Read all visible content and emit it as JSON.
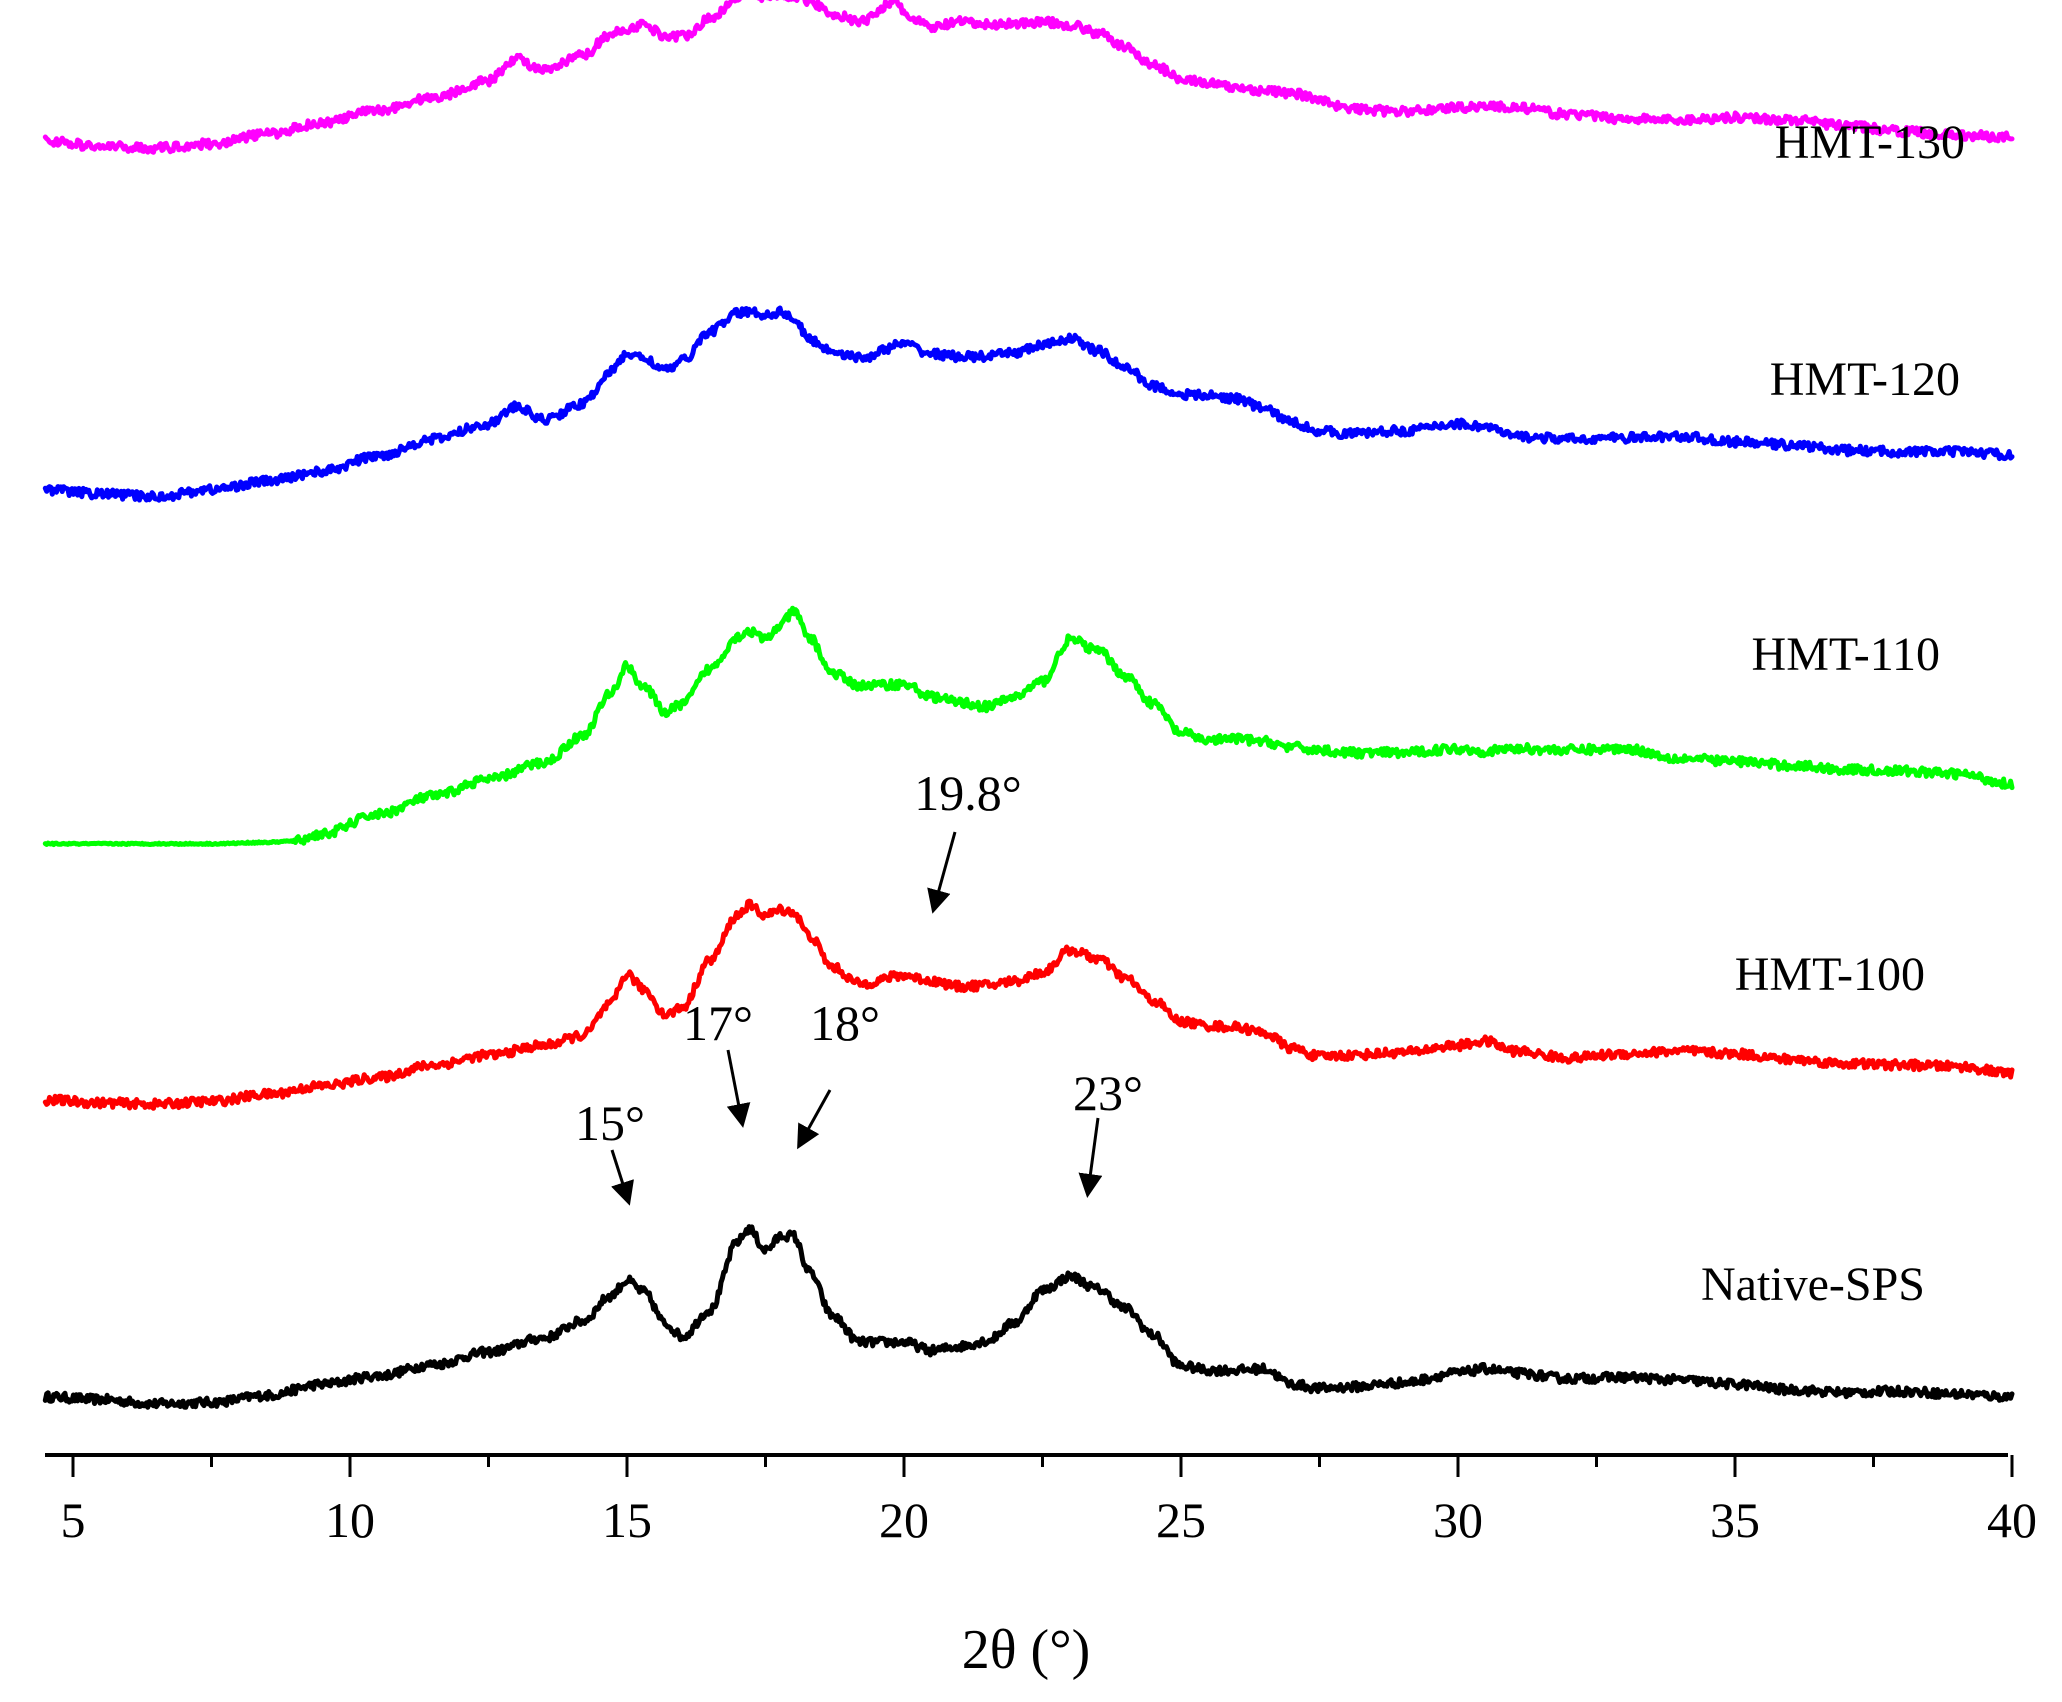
{
  "chart_data": {
    "type": "line",
    "xlabel": "2θ (°)",
    "ylabel": "",
    "xlim": [
      4.5,
      40
    ],
    "xticks": [
      5,
      10,
      15,
      20,
      25,
      30,
      35,
      40
    ],
    "xtick_labels": [
      "5",
      "10",
      "15",
      "20",
      "25",
      "30",
      "35",
      "40"
    ],
    "grid": false,
    "y_axis_shown": false,
    "series": [
      {
        "name": "Native-SPS",
        "color": "#000000",
        "x": [
          4.5,
          5.5,
          6.5,
          7.5,
          8.5,
          9.5,
          10.5,
          11.5,
          12.5,
          13.5,
          14.2,
          14.7,
          15.0,
          15.3,
          15.7,
          16.0,
          16.5,
          17.0,
          17.2,
          17.5,
          17.8,
          18.0,
          18.3,
          18.7,
          19.2,
          20.0,
          20.5,
          21.0,
          21.5,
          22.0,
          22.5,
          23.0,
          23.5,
          24.0,
          24.5,
          25.0,
          25.5,
          26.0,
          26.5,
          27.0,
          27.5,
          28.0,
          29.0,
          30.0,
          30.5,
          31.0,
          32.0,
          33.0,
          34.0,
          35.0,
          36.0,
          37.0,
          38.0,
          39.0,
          40.0
        ],
        "y": [
          1.3,
          1.1,
          0.8,
          0.9,
          1.4,
          2.2,
          2.8,
          3.6,
          4.5,
          5.5,
          6.7,
          8.5,
          9.6,
          8.8,
          6.5,
          5.6,
          7.5,
          12.4,
          13.3,
          11.8,
          12.8,
          12.8,
          10.2,
          7.1,
          5.2,
          5.2,
          4.6,
          4.9,
          5.3,
          6.6,
          8.9,
          9.9,
          9.0,
          7.6,
          5.7,
          3.5,
          3.2,
          3.2,
          3.3,
          2.2,
          1.9,
          2.0,
          2.3,
          3.0,
          3.3,
          3.0,
          2.6,
          2.7,
          2.5,
          2.2,
          1.8,
          1.6,
          1.7,
          1.5,
          1.3
        ]
      },
      {
        "name": "HMT-100",
        "color": "#ff0000",
        "x": [
          4.5,
          5.5,
          6.5,
          7.5,
          8.5,
          9.5,
          10.5,
          11.5,
          12.5,
          13.5,
          14.2,
          14.7,
          15.0,
          15.3,
          15.7,
          16.0,
          16.5,
          17.0,
          17.2,
          17.5,
          17.8,
          18.0,
          18.3,
          18.7,
          19.2,
          20.0,
          20.5,
          21.0,
          21.5,
          22.0,
          22.5,
          23.0,
          23.5,
          24.0,
          24.5,
          25.0,
          25.5,
          26.0,
          26.5,
          27.0,
          27.5,
          28.0,
          29.0,
          30.0,
          30.5,
          31.0,
          32.0,
          33.0,
          34.0,
          35.0,
          36.0,
          37.0,
          38.0,
          39.0,
          40.0
        ],
        "y": [
          22.5,
          22.3,
          22.2,
          22.4,
          22.9,
          23.5,
          24.1,
          25.0,
          25.7,
          26.4,
          27.1,
          29.3,
          31.5,
          30.4,
          28.6,
          29.1,
          32.5,
          35.7,
          36.4,
          35.7,
          36.1,
          35.9,
          34.2,
          32.0,
          30.8,
          31.4,
          31.0,
          30.6,
          30.7,
          31.0,
          31.6,
          33.2,
          32.6,
          31.2,
          29.6,
          28.1,
          27.8,
          27.7,
          27.3,
          26.2,
          25.6,
          25.7,
          25.9,
          26.4,
          26.7,
          26.0,
          25.5,
          25.8,
          26.0,
          25.8,
          25.4,
          25.1,
          25.0,
          24.9,
          24.4
        ]
      },
      {
        "name": "HMT-110",
        "color": "#00ff00",
        "x": [
          4.5,
          5.5,
          6.5,
          7.5,
          8.5,
          9.0,
          9.5,
          10.5,
          11.5,
          12.5,
          13.5,
          14.2,
          14.7,
          15.0,
          15.3,
          15.7,
          16.0,
          16.5,
          17.0,
          17.2,
          17.5,
          17.8,
          18.0,
          18.3,
          18.7,
          19.2,
          20.0,
          20.5,
          21.0,
          21.5,
          22.0,
          22.5,
          23.0,
          23.5,
          24.0,
          24.5,
          25.0,
          25.5,
          26.0,
          26.5,
          27.0,
          27.5,
          28.0,
          29.0,
          30.0,
          30.5,
          31.0,
          32.0,
          33.0,
          34.0,
          35.0,
          36.0,
          37.0,
          38.0,
          39.0,
          40.0
        ],
        "y": [
          40.8,
          40.8,
          40.8,
          40.8,
          40.9,
          41.0,
          41.5,
          42.9,
          44.2,
          45.4,
          46.6,
          48.5,
          51.5,
          53.5,
          52.0,
          50.2,
          50.8,
          53.3,
          55.6,
          56.0,
          55.4,
          56.5,
          57.4,
          55.5,
          53.0,
          52.1,
          52.2,
          51.3,
          50.9,
          50.6,
          51.3,
          52.4,
          55.4,
          54.6,
          52.8,
          50.8,
          48.7,
          48.2,
          48.3,
          48.1,
          47.7,
          47.5,
          47.3,
          47.3,
          47.6,
          47.4,
          47.6,
          47.5,
          47.6,
          46.9,
          46.7,
          46.4,
          46.1,
          46.0,
          45.8,
          45.1
        ]
      },
      {
        "name": "HMT-120",
        "color": "#0000ff",
        "x": [
          4.5,
          5.5,
          6.5,
          7.5,
          8.5,
          9.5,
          10.5,
          11.5,
          12.5,
          13.0,
          13.5,
          14.2,
          14.7,
          15.0,
          15.3,
          15.7,
          16.0,
          16.5,
          17.0,
          17.2,
          17.5,
          17.8,
          18.0,
          18.3,
          18.7,
          19.2,
          20.0,
          20.5,
          21.0,
          21.5,
          22.0,
          22.5,
          23.0,
          23.5,
          24.0,
          24.5,
          25.0,
          25.5,
          26.0,
          26.5,
          27.0,
          27.5,
          28.0,
          29.0,
          30.0,
          30.5,
          31.0,
          32.0,
          33.0,
          34.0,
          35.0,
          36.0,
          37.0,
          38.0,
          39.0,
          40.0
        ],
        "y": [
          66.1,
          65.8,
          65.6,
          66.1,
          66.7,
          67.4,
          68.5,
          69.7,
          70.8,
          72.0,
          71.1,
          72.2,
          74.5,
          75.8,
          75.5,
          74.6,
          75.3,
          77.4,
          78.7,
          78.8,
          78.6,
          78.8,
          78.3,
          76.8,
          76.0,
          75.5,
          76.5,
          75.8,
          75.6,
          75.6,
          75.9,
          76.4,
          76.9,
          76.0,
          74.8,
          73.5,
          72.9,
          72.8,
          72.6,
          71.9,
          70.9,
          70.3,
          70.1,
          70.3,
          70.8,
          70.6,
          69.9,
          69.7,
          69.8,
          69.9,
          69.5,
          69.3,
          68.9,
          68.8,
          68.8,
          68.6
        ]
      },
      {
        "name": "HMT-130",
        "color": "#ff00ff",
        "x": [
          4.5,
          5.5,
          6.5,
          7.5,
          8.5,
          9.5,
          10.5,
          11.5,
          12.5,
          13.0,
          13.5,
          14.2,
          14.7,
          15.0,
          15.3,
          15.7,
          16.0,
          16.5,
          17.0,
          17.2,
          17.5,
          17.8,
          18.0,
          18.3,
          18.7,
          19.2,
          19.8,
          20.2,
          20.5,
          21.0,
          21.5,
          22.0,
          22.5,
          23.0,
          23.5,
          24.0,
          24.5,
          25.0,
          25.5,
          26.0,
          26.5,
          27.0,
          27.5,
          28.0,
          29.0,
          30.0,
          30.5,
          31.0,
          32.0,
          33.0,
          34.0,
          35.0,
          36.0,
          37.0,
          38.0,
          39.0,
          40.0
        ],
        "y": [
          91.0,
          90.6,
          90.5,
          90.8,
          91.5,
          92.3,
          93.2,
          94.1,
          95.3,
          96.9,
          96.0,
          97.1,
          98.6,
          99.0,
          99.3,
          98.5,
          98.5,
          99.7,
          101.3,
          101.6,
          101.3,
          101.4,
          101.4,
          101.0,
          100.1,
          99.5,
          100.9,
          99.6,
          99.1,
          99.5,
          99.3,
          99.4,
          99.5,
          99.3,
          98.7,
          97.7,
          96.4,
          95.5,
          95.1,
          94.8,
          94.6,
          94.4,
          94.0,
          93.3,
          93.1,
          93.4,
          93.5,
          93.4,
          92.9,
          92.6,
          92.5,
          92.7,
          92.5,
          92.1,
          91.7,
          91.4,
          91.3
        ]
      }
    ],
    "annotations": [
      {
        "label": "15°",
        "x": 15.0
      },
      {
        "label": "17°",
        "x": 17.0
      },
      {
        "label": "18°",
        "x": 18.0
      },
      {
        "label": "23°",
        "x": 23.0
      },
      {
        "label": "19.8°",
        "x": 19.8
      }
    ]
  }
}
